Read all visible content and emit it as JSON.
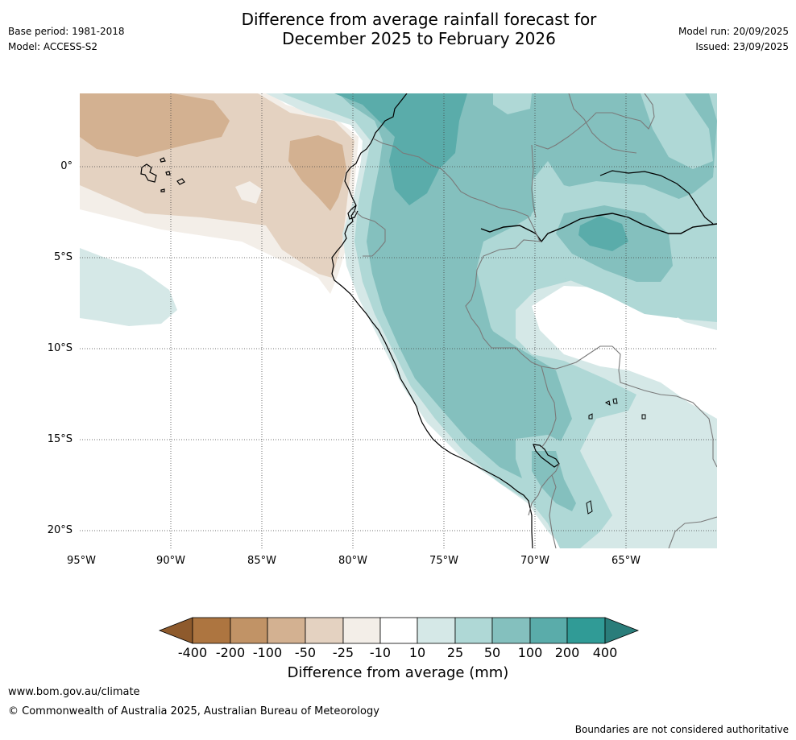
{
  "header": {
    "title_line1": "Difference from average rainfall forecast for",
    "title_line2": "December 2025 to February 2026",
    "base_period": "Base period: 1981-2018",
    "model": "Model: ACCESS-S2",
    "model_run": "Model run: 20/09/2025",
    "issued": "Issued: 23/09/2025"
  },
  "map": {
    "lat_labels": [
      "0°",
      "5°S",
      "10°S",
      "15°S",
      "20°S"
    ],
    "lon_labels": [
      "95°W",
      "90°W",
      "85°W",
      "80°W",
      "75°W",
      "70°W",
      "65°W"
    ],
    "colors": {
      "n400": "#8e5a2c",
      "n200": "#ad7540",
      "n100": "#c19366",
      "n50": "#d3b191",
      "n25": "#e4d2c1",
      "n10": "#f3eee8",
      "zero": "#ffffff",
      "p10": "#d5e8e7",
      "p25": "#afd8d6",
      "p50": "#84c0be",
      "p100": "#5aacaa",
      "p200": "#309b96",
      "p400": "#2a7d7a"
    }
  },
  "colorbar": {
    "tick_labels": [
      "-400",
      "-200",
      "-100",
      "-50",
      "-25",
      "-10",
      "10",
      "25",
      "50",
      "100",
      "200",
      "400"
    ],
    "title": "Difference from average (mm)"
  },
  "footer": {
    "url": "www.bom.gov.au/climate",
    "copyright": "© Commonwealth of Australia 2025, Australian Bureau of Meteorology",
    "disclaimer": "Boundaries are not considered authoritative"
  }
}
